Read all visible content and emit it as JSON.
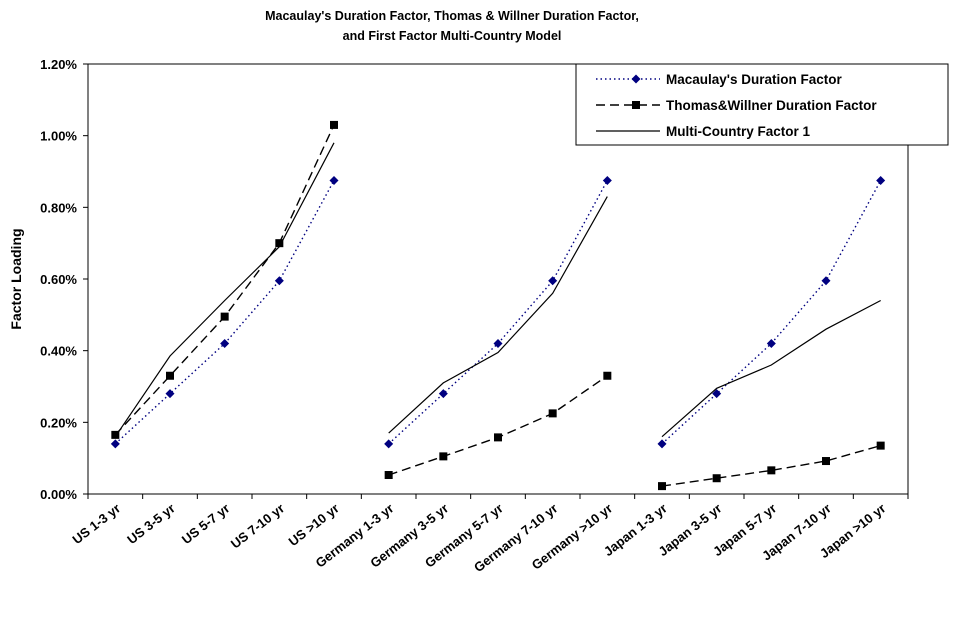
{
  "chart_data": {
    "type": "line",
    "title_line1": "Macaulay's Duration Factor, Thomas &  Willner Duration Factor,",
    "title_line2": "and First Factor Multi-Country Model",
    "ylabel": "Factor Loading",
    "xlabel": "",
    "ylim": [
      0,
      1.2
    ],
    "y_ticks": [
      "0.00%",
      "0.20%",
      "0.40%",
      "0.60%",
      "0.80%",
      "1.00%",
      "1.20%"
    ],
    "categories": [
      "US 1-3 yr",
      "US 3-5 yr",
      "US 5-7 yr",
      "US 7-10 yr",
      "US >10 yr",
      "Germany 1-3 yr",
      "Germany 3-5 yr",
      "Germany 5-7 yr",
      "Germany 7-10 yr",
      "Germany >10 yr",
      "Japan 1-3 yr",
      "Japan 3-5 yr",
      "Japan 5-7 yr",
      "Japan 7-10 yr",
      "Japan >10 yr"
    ],
    "groups": [
      [
        0,
        4
      ],
      [
        5,
        9
      ],
      [
        10,
        14
      ]
    ],
    "grid": false,
    "legend_position": "top-right",
    "series": [
      {
        "name": "Macaulay's Duration Factor",
        "style": "dotted",
        "marker": "diamond",
        "color": "#000080",
        "values": [
          0.14,
          0.28,
          0.42,
          0.595,
          0.875,
          0.14,
          0.28,
          0.42,
          0.595,
          0.875,
          0.14,
          0.28,
          0.42,
          0.595,
          0.875
        ]
      },
      {
        "name": "Thomas&Willner Duration Factor",
        "style": "dashed",
        "marker": "square",
        "color": "#000000",
        "values": [
          0.165,
          0.33,
          0.495,
          0.7,
          1.03,
          0.053,
          0.105,
          0.158,
          0.225,
          0.33,
          0.022,
          0.044,
          0.066,
          0.092,
          0.135
        ]
      },
      {
        "name": "Multi-Country Factor 1",
        "style": "solid",
        "marker": "none",
        "color": "#000000",
        "values": [
          0.16,
          0.385,
          0.54,
          0.69,
          0.98,
          0.17,
          0.31,
          0.395,
          0.56,
          0.83,
          0.16,
          0.295,
          0.36,
          0.46,
          0.54
        ]
      }
    ]
  }
}
